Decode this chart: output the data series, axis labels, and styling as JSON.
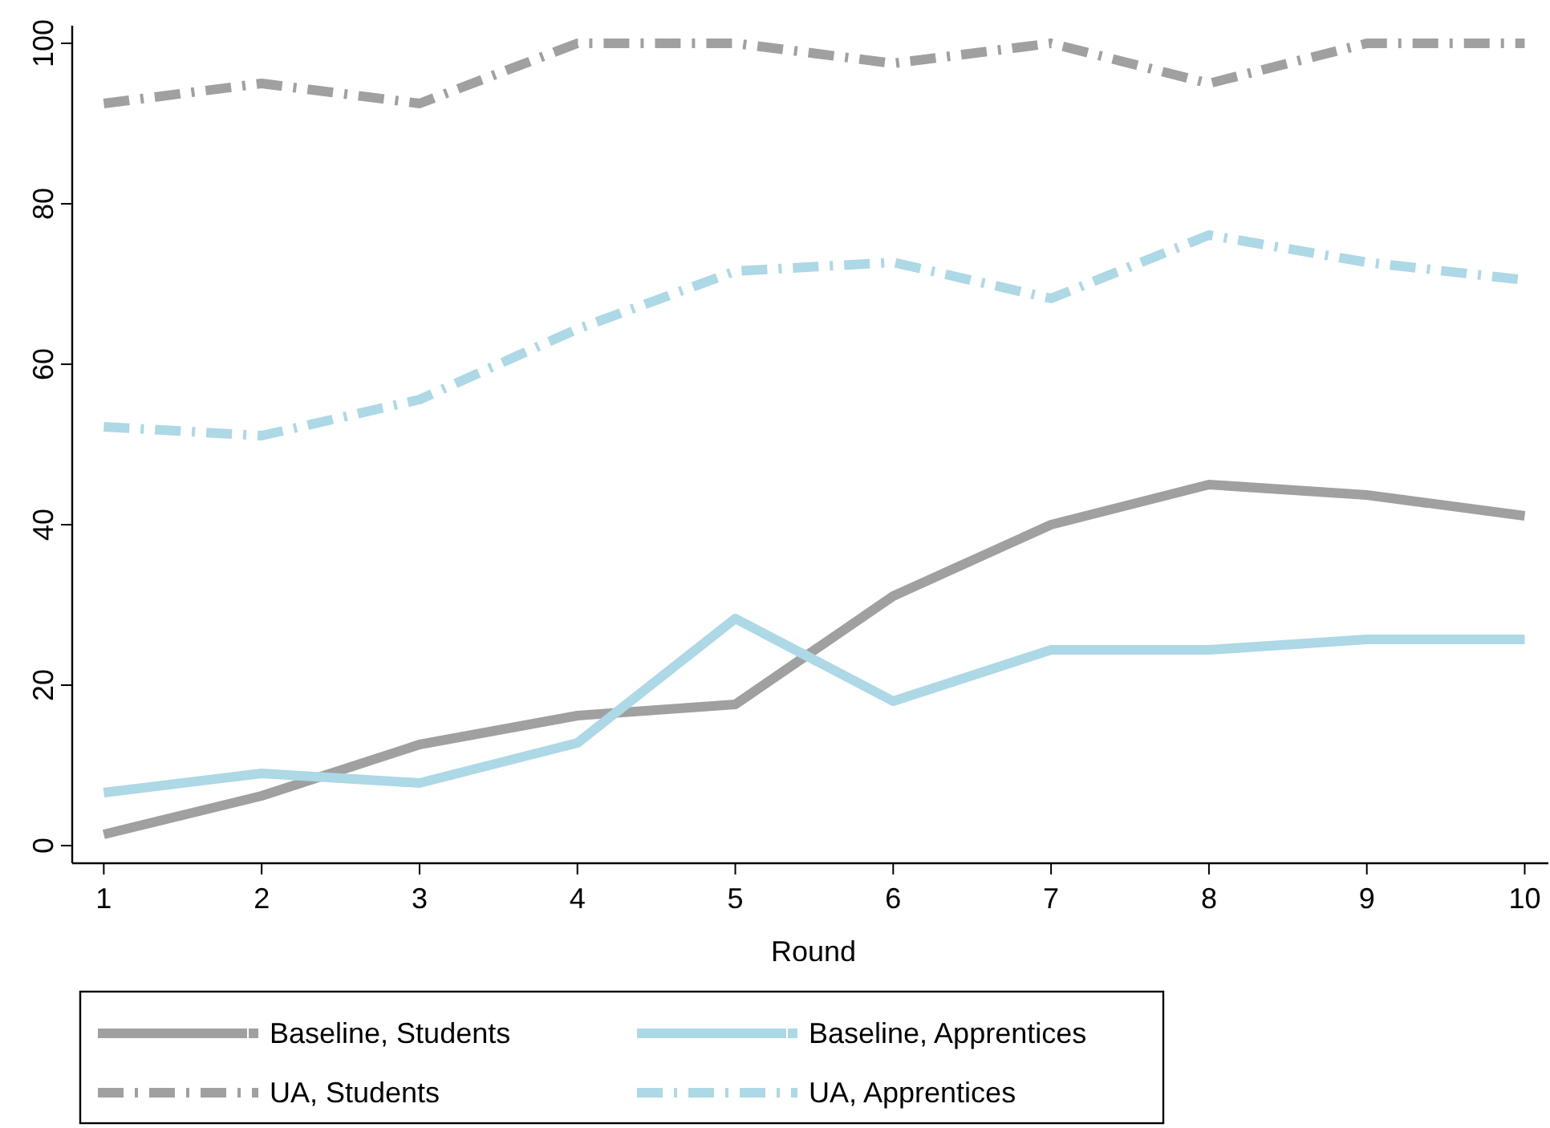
{
  "chart_data": {
    "type": "line",
    "xlabel": "Round",
    "x": [
      1,
      2,
      3,
      4,
      5,
      6,
      7,
      8,
      9,
      10
    ],
    "xlim": [
      0.8,
      10.15
    ],
    "xticks": [
      1,
      2,
      3,
      4,
      5,
      6,
      7,
      8,
      9,
      10
    ],
    "ylim": [
      -2.2,
      102.2
    ],
    "yticks": [
      0,
      20,
      40,
      60,
      80,
      100
    ],
    "grid": false,
    "legend": "bottom",
    "marker": "none",
    "series": [
      {
        "name": "Baseline, Students",
        "color": "#a0a0a0",
        "line_style": "solid",
        "values": [
          1.4,
          6.2,
          12.6,
          16.2,
          17.6,
          31.1,
          40,
          45,
          43.7,
          41.1
        ]
      },
      {
        "name": "Baseline, Apprentices",
        "color": "#add8e6",
        "line_style": "solid",
        "values": [
          6.6,
          9,
          7.8,
          12.8,
          28.3,
          18,
          24.4,
          24.4,
          25.7,
          25.7
        ]
      },
      {
        "name": "UA, Students",
        "color": "#a0a0a0",
        "line_style": "dashed",
        "values": [
          92.5,
          95,
          92.5,
          100,
          100,
          97.5,
          100,
          95,
          100,
          100
        ]
      },
      {
        "name": "UA, Apprentices",
        "color": "#add8e6",
        "line_style": "dashed",
        "values": [
          52.2,
          51.1,
          55.6,
          64.4,
          71.6,
          72.7,
          68.2,
          76.1,
          72.7,
          70.5
        ]
      }
    ]
  }
}
